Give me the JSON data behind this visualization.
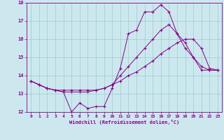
{
  "xlabel": "Windchill (Refroidissement éolien,°C)",
  "background_color": "#cce8ee",
  "line_color": "#880088",
  "grid_color": "#99cccc",
  "xlim": [
    -0.5,
    23.5
  ],
  "ylim": [
    12,
    18
  ],
  "yticks": [
    12,
    13,
    14,
    15,
    16,
    17,
    18
  ],
  "xticks": [
    0,
    1,
    2,
    3,
    4,
    5,
    6,
    7,
    8,
    9,
    10,
    11,
    12,
    13,
    14,
    15,
    16,
    17,
    18,
    19,
    20,
    21,
    22,
    23
  ],
  "lines": [
    {
      "x": [
        0,
        1,
        2,
        3,
        4,
        5,
        6,
        7,
        8,
        9,
        10,
        11,
        12,
        13,
        14,
        15,
        16,
        17,
        18,
        19,
        20,
        21,
        22,
        23
      ],
      "y": [
        13.7,
        13.5,
        13.3,
        13.2,
        13.1,
        12.0,
        12.5,
        12.2,
        12.3,
        12.3,
        13.3,
        14.4,
        16.3,
        16.5,
        17.5,
        17.5,
        17.9,
        17.5,
        16.3,
        15.5,
        15.0,
        14.3,
        14.3,
        14.3
      ]
    },
    {
      "x": [
        0,
        1,
        2,
        3,
        4,
        5,
        6,
        7,
        8,
        9,
        10,
        11,
        12,
        13,
        14,
        15,
        16,
        17,
        18,
        19,
        20,
        21,
        22,
        23
      ],
      "y": [
        13.7,
        13.5,
        13.3,
        13.2,
        13.1,
        13.1,
        13.1,
        13.1,
        13.2,
        13.3,
        13.5,
        14.0,
        14.5,
        15.0,
        15.5,
        16.0,
        16.5,
        16.8,
        16.3,
        15.8,
        15.0,
        14.5,
        14.3,
        14.3
      ]
    },
    {
      "x": [
        0,
        1,
        2,
        3,
        4,
        5,
        6,
        7,
        8,
        9,
        10,
        11,
        12,
        13,
        14,
        15,
        16,
        17,
        18,
        19,
        20,
        21,
        22,
        23
      ],
      "y": [
        13.7,
        13.5,
        13.3,
        13.2,
        13.2,
        13.2,
        13.2,
        13.2,
        13.2,
        13.3,
        13.5,
        13.7,
        14.0,
        14.2,
        14.5,
        14.8,
        15.2,
        15.5,
        15.8,
        16.0,
        16.0,
        15.5,
        14.4,
        14.3
      ]
    }
  ]
}
